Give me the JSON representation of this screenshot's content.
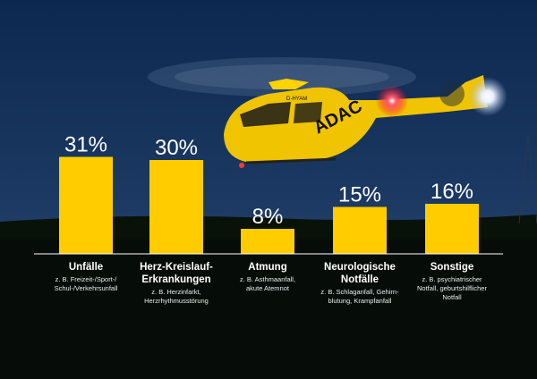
{
  "colors": {
    "bar": "#ffcc00",
    "text": "#ffffff",
    "sky_top": "#0f2a52",
    "sky_bottom": "#233f63",
    "ground": "#07100a"
  },
  "helicopter": {
    "logo_text": "ADAC",
    "registration": "D-HYAM"
  },
  "chart_data": {
    "type": "bar",
    "categories": [
      "Unfälle",
      "Herz-Kreislauf-Erkrankungen",
      "Atmung",
      "Neurologische Notfälle",
      "Sonstige"
    ],
    "values": [
      31,
      30,
      8,
      15,
      16
    ],
    "value_labels": [
      "31%",
      "30%",
      "8%",
      "15%",
      "16%"
    ],
    "unit": "%",
    "ylim": [
      0,
      35
    ],
    "title": "",
    "xlabel": "",
    "ylabel": "",
    "grid": false,
    "legend": "none"
  },
  "labels": [
    {
      "title": "Unfälle",
      "sub": "z. B. Freizeit-/Sport-/\nSchul-/Verkehrsunfall"
    },
    {
      "title": "Herz-Kreislauf-\nErkrankungen",
      "sub": "z. B. Herzinfarkt,\nHerzrhythmusstörung"
    },
    {
      "title": "Atmung",
      "sub": "z. B. Asthmaanfall,\nakute Atemnot"
    },
    {
      "title": "Neurologische\nNotfälle",
      "sub": "z. B. Schlaganfall, Gehirn-\nblutung, Krampfanfall"
    },
    {
      "title": "Sonstige",
      "sub": "z. B. psychiatrischer\nNotfall, geburtshilflicher\nNotfall"
    }
  ]
}
